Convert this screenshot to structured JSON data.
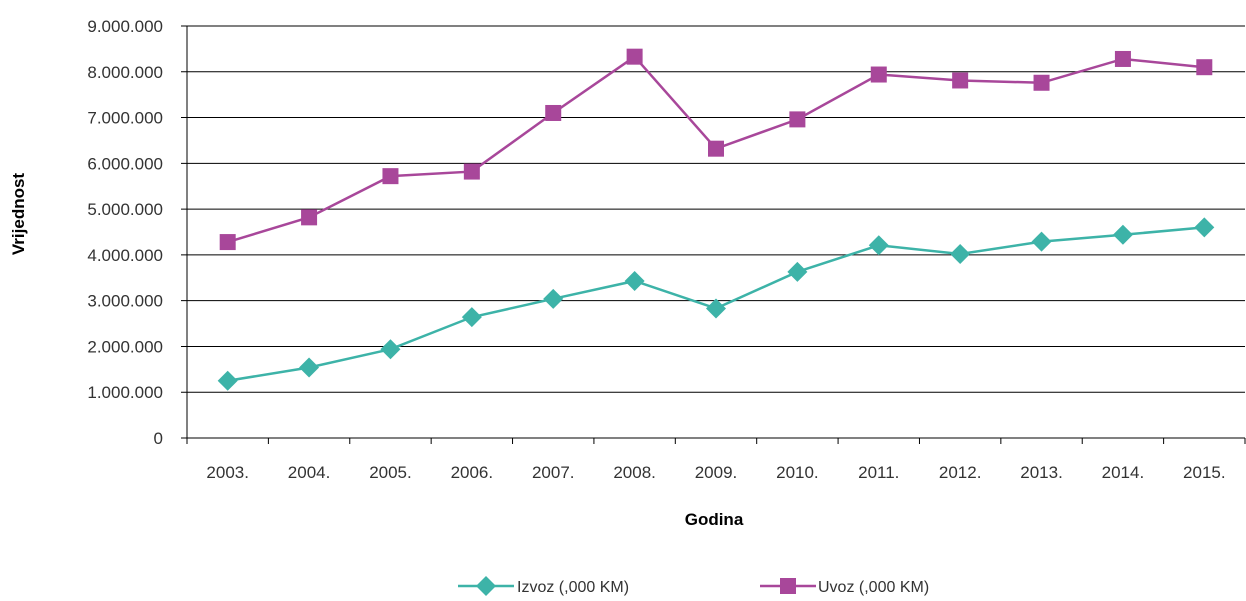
{
  "chart_data": {
    "type": "line",
    "title": "",
    "xlabel": "Godina",
    "ylabel": "Vrijednost",
    "categories": [
      "2003.",
      "2004.",
      "2005.",
      "2006.",
      "2007.",
      "2008.",
      "2009.",
      "2010.",
      "2011.",
      "2012.",
      "2013.",
      "2014.",
      "2015."
    ],
    "ylim": [
      0,
      9000000
    ],
    "yticks": [
      {
        "value": 0,
        "label": "0"
      },
      {
        "value": 1000000,
        "label": "1.000.000"
      },
      {
        "value": 2000000,
        "label": "2.000.000"
      },
      {
        "value": 3000000,
        "label": "3.000.000"
      },
      {
        "value": 4000000,
        "label": "4.000.000"
      },
      {
        "value": 5000000,
        "label": "5.000.000"
      },
      {
        "value": 6000000,
        "label": "6.000.000"
      },
      {
        "value": 7000000,
        "label": "7.000.000"
      },
      {
        "value": 8000000,
        "label": "8.000.000"
      },
      {
        "value": 9000000,
        "label": "9.000.000"
      }
    ],
    "grid": true,
    "legend_position": "bottom",
    "series": [
      {
        "name": "Izvoz (,000 KM)",
        "color": "#3DB3A8",
        "marker": "diamond",
        "values": [
          1250000,
          1540000,
          1940000,
          2640000,
          3040000,
          3430000,
          2830000,
          3630000,
          4210000,
          4020000,
          4290000,
          4440000,
          4600000
        ]
      },
      {
        "name": "Uvoz (,000 KM)",
        "color": "#A8479A",
        "marker": "square",
        "values": [
          4280000,
          4820000,
          5720000,
          5820000,
          7100000,
          8330000,
          6320000,
          6960000,
          7940000,
          7810000,
          7760000,
          8280000,
          8100000
        ]
      }
    ]
  }
}
